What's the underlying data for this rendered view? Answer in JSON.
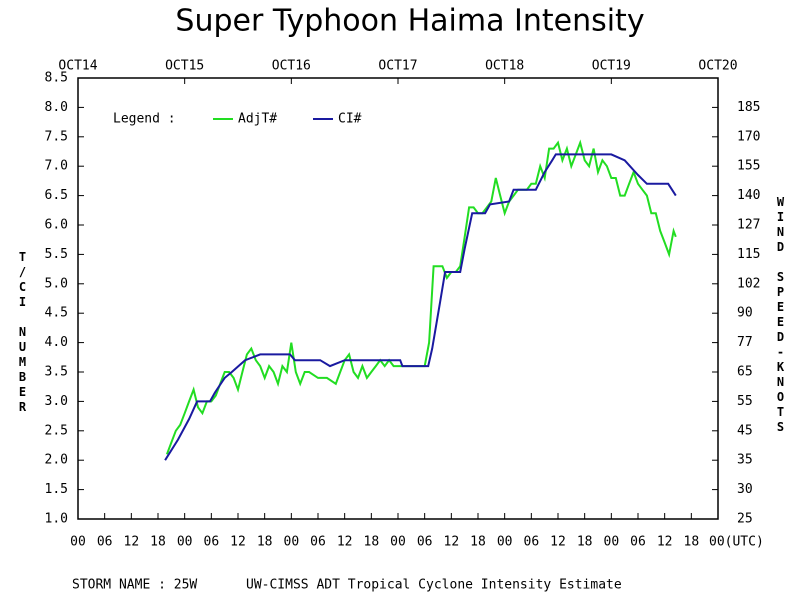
{
  "chart_data": {
    "type": "line",
    "title": "Super Typhoon Haima Intensity",
    "ylabel": "T/CI NUMBER",
    "y2label": "WIND SPEED-KNOTS",
    "legend_title": "Legend :",
    "footer_left": "STORM NAME : 25W",
    "footer_right": "UW-CIMSS ADT Tropical Cyclone Intensity Estimate",
    "xlim": [
      0,
      144
    ],
    "xticks": [
      {
        "value": 0,
        "label": "00"
      },
      {
        "value": 6,
        "label": "06"
      },
      {
        "value": 12,
        "label": "12"
      },
      {
        "value": 18,
        "label": "18"
      },
      {
        "value": 24,
        "label": "00"
      },
      {
        "value": 30,
        "label": "06"
      },
      {
        "value": 36,
        "label": "12"
      },
      {
        "value": 42,
        "label": "18"
      },
      {
        "value": 48,
        "label": "00"
      },
      {
        "value": 54,
        "label": "06"
      },
      {
        "value": 60,
        "label": "12"
      },
      {
        "value": 66,
        "label": "18"
      },
      {
        "value": 72,
        "label": "00"
      },
      {
        "value": 78,
        "label": "06"
      },
      {
        "value": 84,
        "label": "12"
      },
      {
        "value": 90,
        "label": "18"
      },
      {
        "value": 96,
        "label": "00"
      },
      {
        "value": 102,
        "label": "06"
      },
      {
        "value": 108,
        "label": "12"
      },
      {
        "value": 114,
        "label": "18"
      },
      {
        "value": 120,
        "label": "00"
      },
      {
        "value": 126,
        "label": "06"
      },
      {
        "value": 132,
        "label": "12"
      },
      {
        "value": 138,
        "label": "18"
      },
      {
        "value": 144,
        "label": "00(UTC)"
      }
    ],
    "x2ticks": [
      {
        "value": 0,
        "label": "OCT14"
      },
      {
        "value": 24,
        "label": "OCT15"
      },
      {
        "value": 48,
        "label": "OCT16"
      },
      {
        "value": 72,
        "label": "OCT17"
      },
      {
        "value": 96,
        "label": "OCT18"
      },
      {
        "value": 120,
        "label": "OCT19"
      },
      {
        "value": 144,
        "label": "OCT20"
      }
    ],
    "ylim": [
      1.0,
      8.5
    ],
    "yticks": [
      {
        "value": 1,
        "label": "1.0"
      },
      1.5,
      {
        "value": 2,
        "label": "2.0"
      },
      2.5,
      {
        "value": 3,
        "label": "3.0"
      },
      3.5,
      {
        "value": 4,
        "label": "4.0"
      },
      4.5,
      {
        "value": 5,
        "label": "5.0"
      },
      5.5,
      {
        "value": 6,
        "label": "6.0"
      },
      6.5,
      {
        "value": 7,
        "label": "7.0"
      },
      7.5,
      {
        "value": 8,
        "label": "8.0"
      },
      8.5
    ],
    "y2ticks": [
      25,
      30,
      35,
      45,
      55,
      65,
      77,
      90,
      102,
      115,
      127,
      140,
      155,
      170,
      185
    ],
    "series": [
      {
        "name": "AdjT#",
        "color": "#22dd22",
        "x": [
          20,
          21,
          22,
          23,
          24,
          25,
          26,
          27,
          28,
          29,
          30,
          31,
          32,
          33,
          34,
          35,
          36,
          37,
          38,
          39,
          40,
          41,
          42,
          43,
          44,
          45,
          46,
          47,
          48,
          49,
          50,
          51,
          52,
          54,
          56,
          58,
          59,
          60,
          61,
          62,
          63,
          64,
          65,
          66,
          67,
          68,
          69,
          70,
          71,
          72,
          74,
          76,
          78,
          79,
          80,
          82,
          83,
          84,
          85,
          86,
          87,
          88,
          89,
          90,
          91,
          92,
          93,
          94,
          95,
          96,
          97,
          98,
          99,
          100,
          101,
          102,
          103,
          104,
          105,
          106,
          107,
          108,
          109,
          110,
          111,
          112,
          113,
          114,
          115,
          116,
          117,
          118,
          119,
          120,
          121,
          122,
          123,
          124,
          125,
          126,
          127,
          128,
          129,
          130,
          131,
          132,
          133,
          134,
          134.5
        ],
        "values": [
          2.1,
          2.3,
          2.5,
          2.6,
          2.8,
          3.0,
          3.2,
          2.9,
          2.8,
          3.0,
          3.0,
          3.1,
          3.3,
          3.5,
          3.5,
          3.4,
          3.2,
          3.5,
          3.8,
          3.9,
          3.7,
          3.6,
          3.4,
          3.6,
          3.5,
          3.3,
          3.6,
          3.5,
          4.0,
          3.5,
          3.3,
          3.5,
          3.5,
          3.4,
          3.4,
          3.3,
          3.5,
          3.7,
          3.8,
          3.5,
          3.4,
          3.6,
          3.4,
          3.5,
          3.6,
          3.7,
          3.6,
          3.7,
          3.6,
          3.6,
          3.6,
          3.6,
          3.6,
          4.0,
          5.3,
          5.3,
          5.1,
          5.2,
          5.2,
          5.3,
          5.8,
          6.3,
          6.3,
          6.2,
          6.2,
          6.3,
          6.4,
          6.8,
          6.5,
          6.2,
          6.4,
          6.5,
          6.6,
          6.6,
          6.6,
          6.7,
          6.7,
          7.0,
          6.8,
          7.3,
          7.3,
          7.4,
          7.1,
          7.3,
          7.0,
          7.2,
          7.4,
          7.1,
          7.0,
          7.3,
          6.9,
          7.1,
          7.0,
          6.8,
          6.8,
          6.5,
          6.5,
          6.7,
          6.9,
          6.7,
          6.6,
          6.5,
          6.2,
          6.2,
          5.9,
          5.7,
          5.5,
          5.9,
          5.8
        ]
      },
      {
        "name": "CI#",
        "color": "#1a1aa0",
        "x": [
          19.6,
          22.5,
          25,
          26.8,
          29.7,
          30.8,
          33,
          34.6,
          37.6,
          41,
          47.7,
          48.8,
          54.5,
          56.7,
          60,
          72.5,
          73,
          78.8,
          79.7,
          81.5,
          82.6,
          86,
          87,
          88.7,
          91.6,
          92.7,
          97,
          98,
          103,
          105,
          106.7,
          107.5,
          120,
          123,
          124.2,
          126,
          128,
          132.8,
          134.5
        ],
        "values": [
          2.0,
          2.35,
          2.7,
          3.0,
          3.0,
          3.15,
          3.4,
          3.5,
          3.7,
          3.8,
          3.8,
          3.7,
          3.7,
          3.6,
          3.7,
          3.7,
          3.6,
          3.6,
          3.9,
          4.7,
          5.2,
          5.2,
          5.6,
          6.2,
          6.2,
          6.35,
          6.4,
          6.6,
          6.6,
          6.9,
          7.1,
          7.2,
          7.2,
          7.1,
          7.0,
          6.85,
          6.7,
          6.7,
          6.5
        ]
      }
    ]
  }
}
